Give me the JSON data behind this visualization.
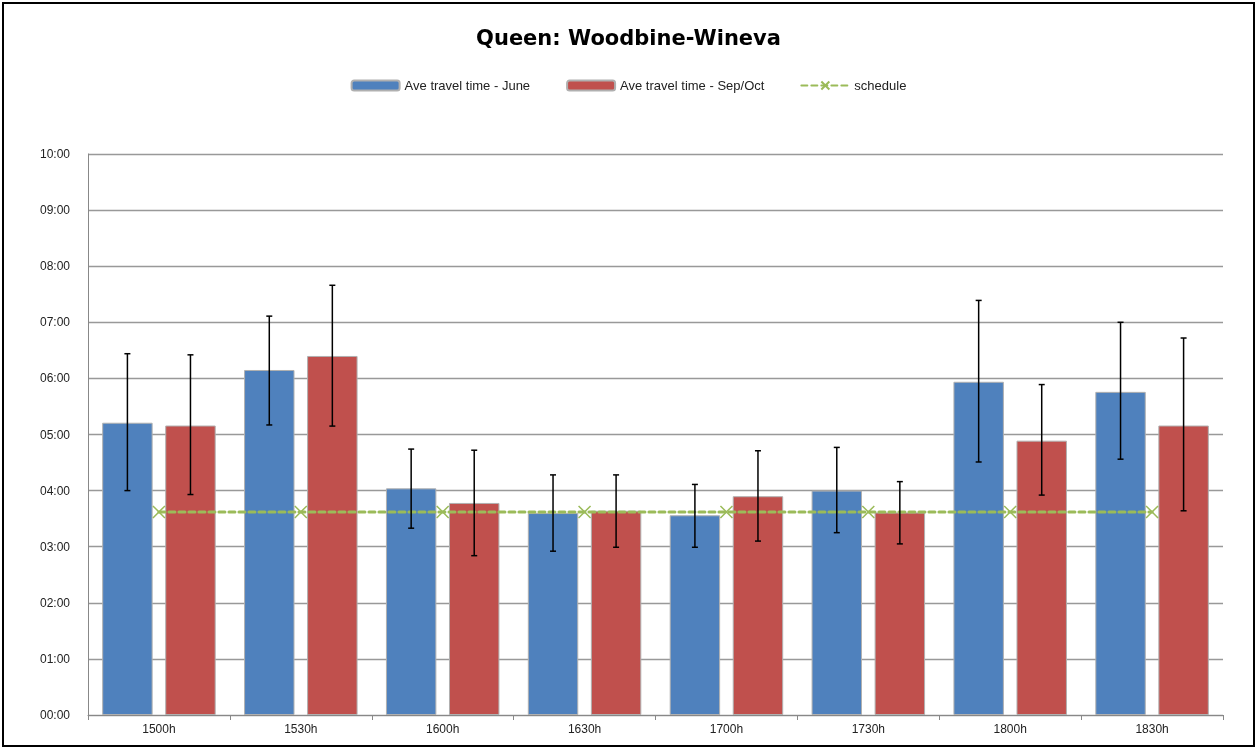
{
  "chart_data": {
    "type": "bar",
    "title": "Queen: Woodbine-Wineva",
    "categories": [
      "1500h",
      "1530h",
      "1600h",
      "1630h",
      "1700h",
      "1730h",
      "1800h",
      "1830h"
    ],
    "series": [
      {
        "name": "Ave travel time - June",
        "color": "#4f81bd",
        "values": [
          5.21,
          6.15,
          4.04,
          3.6,
          3.56,
          4.0,
          5.94,
          5.76
        ],
        "errors": [
          [
            4.0,
            6.44
          ],
          [
            5.17,
            7.11
          ],
          [
            3.33,
            4.74
          ],
          [
            2.92,
            4.28
          ],
          [
            2.99,
            4.11
          ],
          [
            3.25,
            4.77
          ],
          [
            4.51,
            7.39
          ],
          [
            4.56,
            7.0
          ]
        ]
      },
      {
        "name": "Ave travel time - Sep/Oct",
        "color": "#c0504d",
        "values": [
          5.16,
          6.4,
          3.78,
          3.64,
          3.9,
          3.61,
          4.89,
          5.16
        ],
        "errors": [
          [
            3.93,
            6.42
          ],
          [
            5.15,
            7.66
          ],
          [
            2.84,
            4.72
          ],
          [
            2.99,
            4.28
          ],
          [
            3.1,
            4.71
          ],
          [
            3.05,
            4.16
          ],
          [
            3.92,
            5.89
          ],
          [
            3.64,
            6.72
          ]
        ]
      },
      {
        "name": "schedule",
        "type": "line",
        "color": "#9bbb59",
        "marker": "cross",
        "line_style": "dashed",
        "values": [
          3.62,
          3.62,
          3.62,
          3.62,
          3.62,
          3.62,
          3.62,
          3.62
        ]
      }
    ],
    "ylim": [
      0,
      10
    ],
    "yticks": [
      {
        "value": 0,
        "label": "00:00"
      },
      {
        "value": 1,
        "label": "01:00"
      },
      {
        "value": 2,
        "label": "02:00"
      },
      {
        "value": 3,
        "label": "03:00"
      },
      {
        "value": 4,
        "label": "04:00"
      },
      {
        "value": 5,
        "label": "05:00"
      },
      {
        "value": 6,
        "label": "06:00"
      },
      {
        "value": 7,
        "label": "07:00"
      },
      {
        "value": 8,
        "label": "08:00"
      },
      {
        "value": 9,
        "label": "09:00"
      },
      {
        "value": 10,
        "label": "10:00"
      }
    ],
    "grid": "y",
    "legend": "top"
  }
}
